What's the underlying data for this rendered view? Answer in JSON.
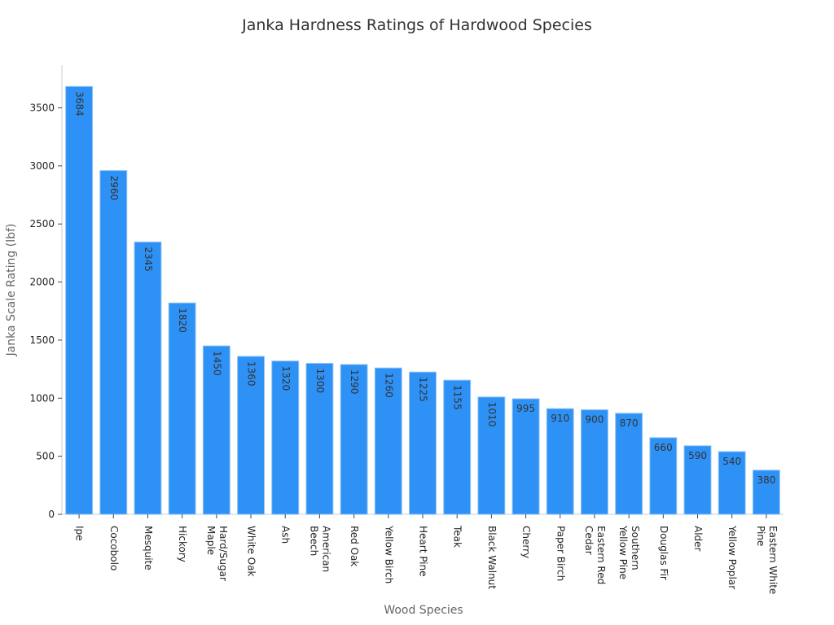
{
  "chart_data": {
    "type": "bar",
    "title": "Janka Hardness Ratings of Hardwood Species",
    "xlabel": "Wood Species",
    "ylabel": "Janka Scale Rating (lbf)",
    "categories": [
      "Ipe",
      "Cocobolo",
      "Mesquite",
      "Hickory",
      "Hard/Sugar\nMaple",
      "White Oak",
      "Ash",
      "American\nBeech",
      "Red Oak",
      "Yellow Birch",
      "Heart Pine",
      "Teak",
      "Black Walnut",
      "Cherry",
      "Paper Birch",
      "Eastern Red\nCedar",
      "Southern\nYellow Pine",
      "Douglas Fir",
      "Alder",
      "Yellow Poplar",
      "Eastern White\nPine"
    ],
    "values": [
      3684,
      2960,
      2345,
      1820,
      1450,
      1360,
      1320,
      1300,
      1290,
      1260,
      1225,
      1155,
      1010,
      995,
      910,
      900,
      870,
      660,
      590,
      540,
      380
    ],
    "ylim": [
      0,
      3868
    ],
    "yticks": [
      0,
      500,
      1000,
      1500,
      2000,
      2500,
      3000,
      3500
    ],
    "grid": false,
    "data_labels": true,
    "bar_color": "#2E91F5"
  }
}
